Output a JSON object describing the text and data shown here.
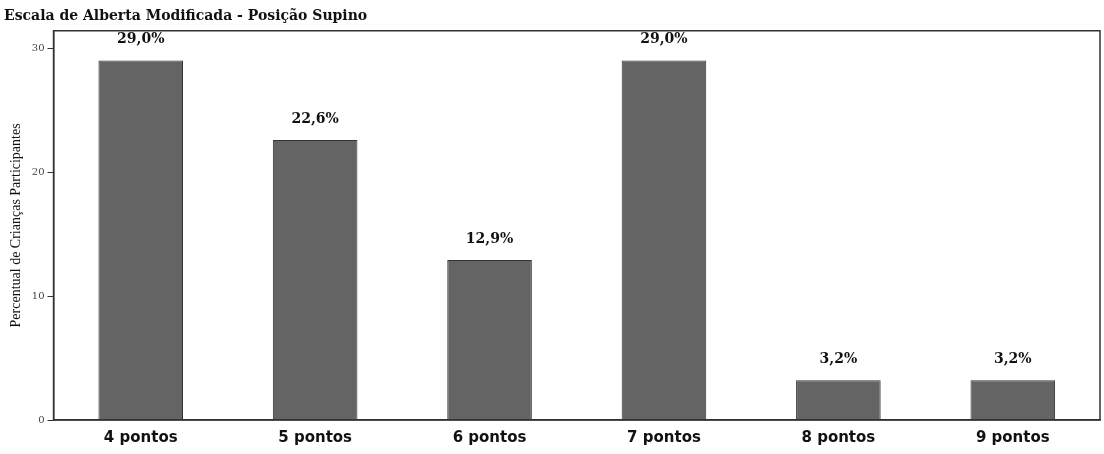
{
  "chart_data": {
    "type": "bar",
    "title": "Escala de Alberta Modificada - Posição Supino",
    "ylabel": "Percentual de Crianças Participantes",
    "categories": [
      "4 pontos",
      "5 pontos",
      "6 pontos",
      "7 pontos",
      "8 pontos",
      "9 pontos"
    ],
    "values": [
      29.0,
      22.6,
      12.9,
      29.0,
      3.2,
      3.2
    ],
    "value_labels": [
      "29,0%",
      "22,6%",
      "12,9%",
      "29,0%",
      "3,2%",
      "3,2%"
    ],
    "color": "#646464",
    "ylim": [
      0,
      31.4
    ],
    "yticks": [
      0,
      10,
      20,
      30
    ],
    "grid": false,
    "legend": false
  }
}
